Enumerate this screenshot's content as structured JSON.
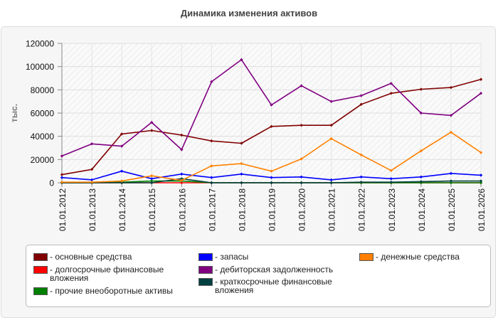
{
  "chart_data": {
    "type": "line",
    "title": "Динамика изменения активов",
    "ylabel": "тыс.",
    "ylim": [
      0,
      120000
    ],
    "yticks": [
      0,
      20000,
      40000,
      60000,
      80000,
      100000,
      120000
    ],
    "ytick_labels": [
      "0",
      "20000",
      "40000",
      "60000",
      "80000",
      "100000",
      "120000"
    ],
    "x": [
      "01.01.2012",
      "01.01.2013",
      "01.01.2014",
      "01.01.2015",
      "01.01.2016",
      "01.01.2017",
      "01.01.2018",
      "01.01.2019",
      "01.01.2020",
      "01.01.2021",
      "01.01.2022",
      "01.01.2023",
      "01.01.2024",
      "01.01.2025",
      "01.01.2026"
    ],
    "legend_position": "bottom",
    "grid": true,
    "series": [
      {
        "name": "- основные средства",
        "color": "#800000",
        "values": [
          7000,
          11500,
          42000,
          45000,
          41000,
          36000,
          34000,
          48500,
          49500,
          49500,
          67500,
          77000,
          80500,
          82000,
          89000
        ]
      },
      {
        "name": "- долгосрочные финансовые вложения",
        "color": "#ff0000",
        "values": [
          0,
          0,
          0,
          0,
          0,
          0,
          0,
          0,
          0,
          0,
          0,
          0,
          0,
          0,
          0
        ]
      },
      {
        "name": "- прочие внеоборотные активы",
        "color": "#008000",
        "values": [
          0,
          0,
          500,
          1500,
          1500,
          0,
          0,
          0,
          0,
          0,
          0,
          0,
          0,
          0,
          0
        ]
      },
      {
        "name": "- запасы",
        "color": "#0000ff",
        "values": [
          4500,
          2500,
          10000,
          3500,
          7500,
          4500,
          7500,
          4500,
          5000,
          2500,
          5000,
          3500,
          5000,
          8000,
          6500
        ]
      },
      {
        "name": "- дебиторская задолженность",
        "color": "#800080",
        "values": [
          23000,
          33500,
          31500,
          52000,
          28500,
          87000,
          106000,
          67000,
          83500,
          70000,
          75000,
          85500,
          60000,
          58000,
          77000
        ]
      },
      {
        "name": "- краткосрочные финансовые вложения",
        "color": "#004040",
        "values": [
          0,
          0,
          0,
          0,
          3500,
          0,
          0,
          0,
          0,
          0,
          500,
          500,
          1000,
          1500,
          1500
        ]
      },
      {
        "name": "- денежные средства",
        "color": "#ff8000",
        "values": [
          500,
          500,
          1500,
          6000,
          2000,
          14500,
          16500,
          10000,
          20500,
          38000,
          24000,
          10500,
          27500,
          43500,
          26000
        ]
      }
    ]
  }
}
